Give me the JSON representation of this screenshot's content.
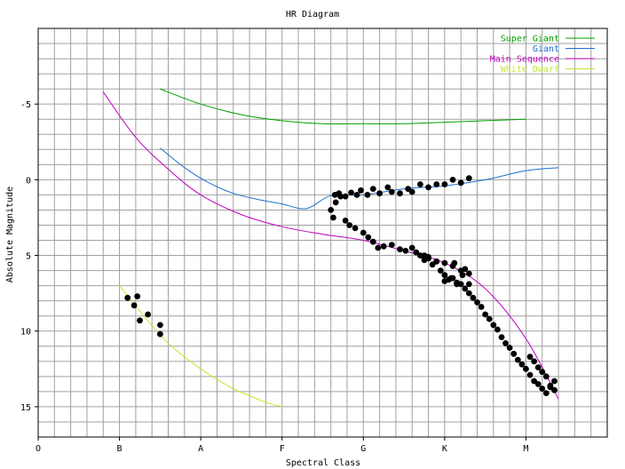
{
  "chart_data": {
    "type": "scatter",
    "title": "HR Diagram",
    "xlabel": "Spectral Class",
    "ylabel": "Absolute Magnitude",
    "x_ticks": [
      "O",
      "B",
      "A",
      "F",
      "G",
      "K",
      "M"
    ],
    "x_tick_values": [
      0,
      1,
      2,
      3,
      4,
      5,
      6
    ],
    "xlim": [
      0,
      7
    ],
    "y_ticks": [
      -5,
      0,
      5,
      10,
      15
    ],
    "ylim": [
      -10,
      17
    ],
    "y_inverted": true,
    "grid": true,
    "legend_position": "top-right",
    "series": [
      {
        "name": "Super Giant",
        "kind": "line",
        "color": "#00a000",
        "x": [
          1.5,
          2.0,
          2.5,
          3.0,
          3.5,
          4.0,
          4.5,
          5.0,
          5.5,
          6.0
        ],
        "y": [
          -6.0,
          -5.0,
          -4.3,
          -3.9,
          -3.7,
          -3.7,
          -3.7,
          -3.8,
          -3.9,
          -4.0
        ]
      },
      {
        "name": "Giant",
        "kind": "line",
        "color": "#1e6fd0",
        "x": [
          1.5,
          1.8,
          2.1,
          2.4,
          2.7,
          3.0,
          3.3,
          3.6,
          4.0,
          4.5,
          5.0,
          5.5,
          6.0,
          6.4
        ],
        "y": [
          -2.1,
          -0.8,
          0.2,
          0.9,
          1.3,
          1.6,
          1.9,
          1.05,
          1.0,
          0.6,
          0.4,
          0.0,
          -0.6,
          -0.8
        ]
      },
      {
        "name": "Main Sequence",
        "kind": "line",
        "color": "#c000c0",
        "x": [
          0.8,
          1.2,
          1.6,
          2.0,
          2.5,
          3.0,
          3.5,
          4.0,
          4.5,
          5.0,
          5.5,
          6.0,
          6.4
        ],
        "y": [
          -5.8,
          -2.8,
          -0.7,
          1.0,
          2.3,
          3.1,
          3.6,
          4.0,
          4.7,
          5.5,
          7.2,
          10.5,
          14.5
        ]
      },
      {
        "name": "White Dwarf",
        "kind": "line",
        "color": "#bfe830",
        "x": [
          1.0,
          1.3,
          1.6,
          2.0,
          2.4,
          2.8,
          3.0
        ],
        "y": [
          7.0,
          9.0,
          10.8,
          12.5,
          13.8,
          14.7,
          15.0
        ]
      },
      {
        "name": "Stars",
        "kind": "scatter",
        "color": "#000000",
        "x": [
          1.1,
          1.18,
          1.22,
          1.25,
          1.35,
          1.5,
          1.5,
          3.6,
          3.63,
          3.66,
          3.72,
          3.78,
          3.83,
          3.9,
          4.0,
          4.06,
          4.12,
          4.18,
          4.25,
          4.35,
          4.45,
          4.52,
          4.6,
          4.65,
          4.75,
          4.8,
          4.9,
          5.0,
          5.1,
          5.2,
          5.3,
          3.65,
          3.7,
          3.78,
          3.85,
          3.92,
          3.97,
          4.05,
          4.12,
          4.2,
          4.3,
          4.35,
          4.45,
          4.55,
          4.6,
          4.7,
          4.8,
          4.9,
          5.0,
          5.1,
          5.2,
          5.3,
          4.7,
          4.75,
          4.8,
          4.85,
          4.9,
          4.95,
          5.0,
          5.05,
          5.1,
          5.15,
          5.2,
          5.25,
          5.3,
          5.35,
          5.4,
          5.45,
          5.5,
          5.55,
          5.6,
          5.65,
          5.7,
          5.75,
          5.8,
          5.85,
          5.9,
          5.95,
          6.0,
          6.05,
          6.1,
          6.15,
          6.2,
          6.25,
          6.3,
          6.35,
          5.0,
          5.08,
          5.15,
          5.22,
          5.3,
          6.05,
          6.1,
          6.15,
          6.2,
          6.25,
          6.3,
          6.35,
          5.12,
          5.25
        ],
        "y": [
          7.8,
          8.3,
          7.7,
          9.3,
          8.9,
          9.6,
          10.2,
          2.0,
          2.5,
          1.5,
          1.1,
          2.7,
          3.0,
          3.2,
          3.5,
          3.8,
          4.1,
          4.5,
          4.4,
          4.3,
          4.6,
          4.7,
          4.5,
          4.8,
          5.0,
          5.2,
          5.4,
          5.5,
          5.7,
          6.0,
          6.2,
          1.0,
          0.9,
          1.1,
          0.85,
          1.0,
          0.7,
          1.0,
          0.6,
          0.9,
          0.5,
          0.8,
          0.9,
          0.6,
          0.8,
          0.3,
          0.5,
          0.3,
          0.3,
          0.0,
          0.2,
          -0.1,
          5.0,
          5.3,
          5.1,
          5.6,
          5.4,
          6.0,
          6.3,
          6.6,
          6.5,
          6.9,
          6.9,
          7.2,
          7.5,
          7.8,
          8.1,
          8.4,
          8.9,
          9.2,
          9.6,
          9.9,
          10.4,
          10.8,
          11.1,
          11.5,
          11.9,
          12.2,
          12.5,
          12.9,
          13.3,
          13.5,
          13.8,
          14.1,
          13.7,
          13.3,
          6.7,
          6.5,
          6.8,
          6.3,
          6.9,
          11.7,
          12.0,
          12.4,
          12.7,
          13.0,
          13.6,
          13.9,
          5.5,
          5.9
        ]
      }
    ]
  }
}
